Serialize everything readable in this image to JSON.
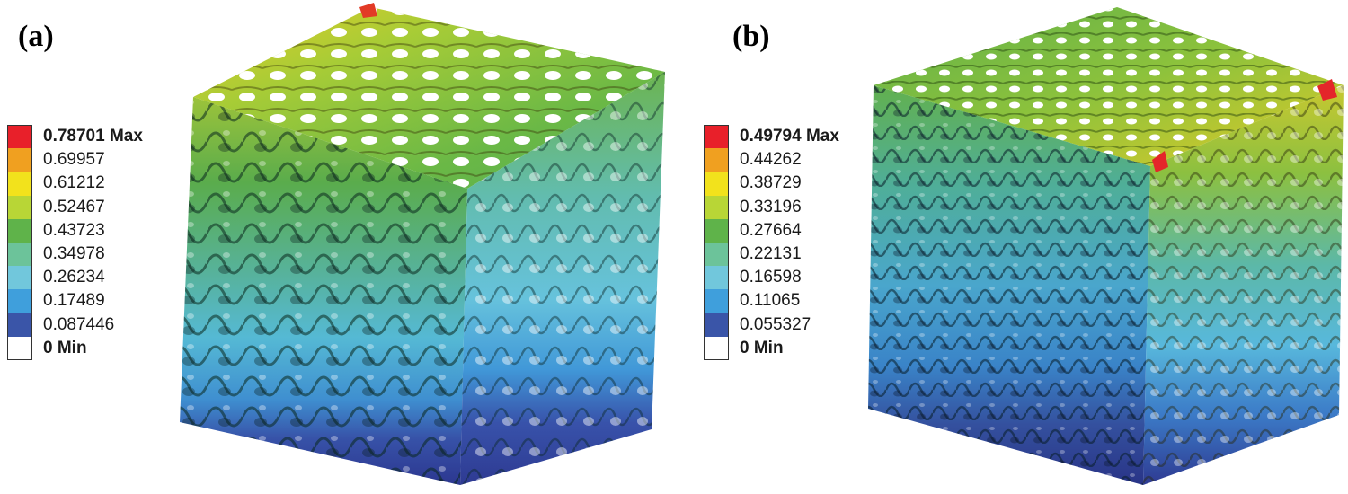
{
  "panels": [
    {
      "label": "(a)",
      "legend": {
        "max_label": "0.78701 Max",
        "values": [
          "0.69957",
          "0.61212",
          "0.52467",
          "0.43723",
          "0.34978",
          "0.26234",
          "0.17489",
          "0.087446"
        ],
        "min_label": "0 Min"
      }
    },
    {
      "label": "(b)",
      "legend": {
        "max_label": "0.49794 Max",
        "values": [
          "0.44262",
          "0.38729",
          "0.33196",
          "0.27664",
          "0.22131",
          "0.16598",
          "0.11065",
          "0.055327"
        ],
        "min_label": "0 Min"
      }
    }
  ],
  "colors": {
    "scale": [
      "#e8202a",
      "#f0a020",
      "#f2e21c",
      "#b8d636",
      "#5fb34a",
      "#6cc39a",
      "#71c7dc",
      "#3f9fdc",
      "#3a55a8"
    ],
    "background": "#ffffff"
  }
}
